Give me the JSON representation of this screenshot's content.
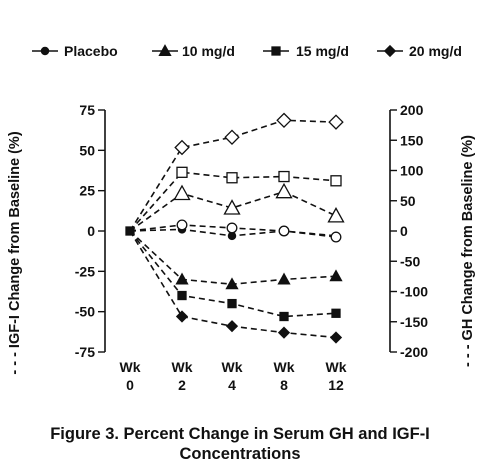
{
  "chart_data": {
    "type": "line",
    "categories": [
      "Wk 0",
      "Wk 2",
      "Wk 4",
      "Wk 8",
      "Wk 12"
    ],
    "category_lines": [
      [
        "Wk",
        "0"
      ],
      [
        "Wk",
        "2"
      ],
      [
        "Wk",
        "4"
      ],
      [
        "Wk",
        "8"
      ],
      [
        "Wk",
        "12"
      ]
    ],
    "left_axis": {
      "label": "- - - IGF-I Change from Baseline (%)",
      "ylim": [
        -75,
        75
      ],
      "ticks": [
        75,
        50,
        25,
        0,
        -25,
        -50,
        -75
      ]
    },
    "right_axis": {
      "label": "GH Change from Baseline (%)",
      "label_prefix": "- - -",
      "ylim": [
        -200,
        200
      ],
      "ticks": [
        200,
        150,
        100,
        50,
        0,
        -50,
        -100,
        -150,
        -200
      ]
    },
    "legend": {
      "position": "top",
      "entries": [
        {
          "label": "Placebo",
          "marker": "circle"
        },
        {
          "label": "10 mg/d",
          "marker": "triangle"
        },
        {
          "label": "15 mg/d",
          "marker": "square"
        },
        {
          "label": "20 mg/d",
          "marker": "diamond"
        }
      ]
    },
    "series": [
      {
        "name": "Placebo",
        "axis": "left",
        "marker": "circle",
        "filled": true,
        "values": [
          0,
          1,
          -3,
          0,
          -3
        ]
      },
      {
        "name": "10 mg/d",
        "axis": "left",
        "marker": "triangle",
        "filled": true,
        "values": [
          0,
          -30,
          -33,
          -30,
          -28
        ]
      },
      {
        "name": "15 mg/d",
        "axis": "left",
        "marker": "square",
        "filled": true,
        "values": [
          0,
          -40,
          -45,
          -53,
          -51
        ]
      },
      {
        "name": "20 mg/d",
        "axis": "left",
        "marker": "diamond",
        "filled": true,
        "values": [
          0,
          -53,
          -59,
          -63,
          -66
        ]
      },
      {
        "name": "Placebo",
        "axis": "right",
        "marker": "circle",
        "filled": false,
        "values": [
          0,
          10,
          5,
          0,
          -10
        ]
      },
      {
        "name": "10 mg/d",
        "axis": "right",
        "marker": "triangle",
        "filled": false,
        "values": [
          0,
          62,
          38,
          65,
          25
        ]
      },
      {
        "name": "15 mg/d",
        "axis": "right",
        "marker": "square",
        "filled": false,
        "values": [
          0,
          97,
          88,
          90,
          83
        ]
      },
      {
        "name": "20 mg/d",
        "axis": "right",
        "marker": "diamond",
        "filled": false,
        "values": [
          0,
          138,
          155,
          183,
          180
        ]
      }
    ]
  },
  "caption": {
    "line1": "Figure 3. Percent Change in Serum GH and IGF-I",
    "line2": "Concentrations"
  }
}
